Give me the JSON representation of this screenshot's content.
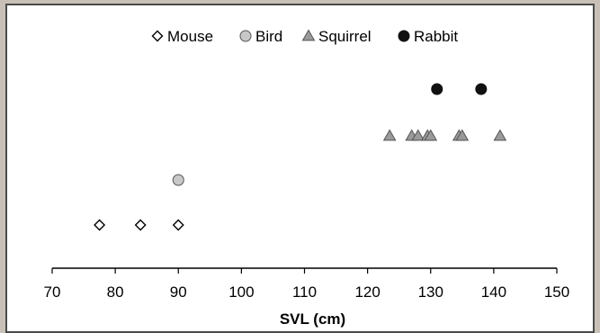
{
  "chart_data": {
    "type": "scatter",
    "title": "",
    "xlabel": "SVL (cm)",
    "ylabel": "",
    "xlim": [
      70,
      150
    ],
    "xticks": [
      70,
      80,
      90,
      100,
      110,
      120,
      130,
      140,
      150
    ],
    "y_levels": 4,
    "grid": false,
    "legend_position": "top",
    "series": [
      {
        "name": "Mouse",
        "marker": "diamond-open",
        "color": "#ffffff",
        "stroke": "#000000",
        "level": 1,
        "x": [
          77.5,
          84,
          90
        ]
      },
      {
        "name": "Bird",
        "marker": "circle",
        "color": "#c8c8c8",
        "stroke": "#555555",
        "level": 2,
        "x": [
          90
        ]
      },
      {
        "name": "Squirrel",
        "marker": "triangle",
        "color": "#9a9a9a",
        "stroke": "#555555",
        "level": 3,
        "x": [
          123.5,
          127,
          128,
          129.5,
          130,
          134.5,
          135,
          141
        ]
      },
      {
        "name": "Rabbit",
        "marker": "circle",
        "color": "#111111",
        "stroke": "#111111",
        "level": 4,
        "x": [
          131,
          138
        ]
      }
    ]
  }
}
